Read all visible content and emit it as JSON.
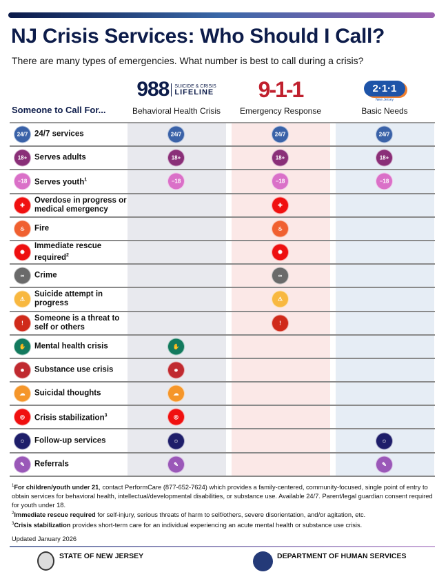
{
  "title": "NJ Crisis Services: Who Should I Call?",
  "subtitle": "There are many types of emergencies. What number is best to call during a crisis?",
  "column_header": "Someone to Call For...",
  "columns": [
    {
      "logo": "988",
      "logo_sub1": "SUICIDE & CRISIS",
      "logo_sub2": "LIFELINE",
      "label": "Behavioral Health Crisis",
      "bg": "#e8e9ee"
    },
    {
      "logo": "9-1-1",
      "label": "Emergency Response",
      "bg": "#fbe8e7"
    },
    {
      "logo": "2·1·1",
      "logo_sub1": "New Jersey",
      "label": "Basic Needs",
      "bg": "#e6edf5"
    }
  ],
  "rows": [
    {
      "label": "24/7 services",
      "sup": "",
      "icon": "clock-24-7-icon",
      "glyph": "24/7",
      "color": "#3a62a8",
      "cols": [
        true,
        true,
        true
      ]
    },
    {
      "label": "Serves adults",
      "sup": "",
      "icon": "adults-18-plus-icon",
      "glyph": "18+",
      "color": "#8a2f78",
      "cols": [
        true,
        true,
        true
      ]
    },
    {
      "label": "Serves youth",
      "sup": "1",
      "icon": "youth-under-18-icon",
      "glyph": "−18",
      "color": "#da70c8",
      "cols": [
        true,
        true,
        true
      ]
    },
    {
      "label": "Overdose in progress or medical emergency",
      "sup": "",
      "icon": "medical-cross-icon",
      "glyph": "✚",
      "color": "#f01010",
      "cols": [
        false,
        true,
        false
      ]
    },
    {
      "label": "Fire",
      "sup": "",
      "icon": "fire-icon",
      "glyph": "♨",
      "color": "#f06030",
      "cols": [
        false,
        true,
        false
      ]
    },
    {
      "label": "Immediate rescue required",
      "sup": "2",
      "icon": "siren-icon",
      "glyph": "✺",
      "color": "#ee1010",
      "cols": [
        false,
        true,
        false
      ]
    },
    {
      "label": "Crime",
      "sup": "",
      "icon": "handcuffs-icon",
      "glyph": "∞",
      "color": "#6a6a6a",
      "cols": [
        false,
        true,
        false
      ]
    },
    {
      "label": "Suicide attempt in progress",
      "sup": "",
      "icon": "person-warning-icon",
      "glyph": "⚠",
      "color": "#f8b840",
      "cols": [
        false,
        true,
        false
      ]
    },
    {
      "label": "Someone is a threat to self or others",
      "sup": "",
      "icon": "warning-triangle-icon",
      "glyph": "!",
      "color": "#d02a1a",
      "cols": [
        false,
        true,
        false
      ]
    },
    {
      "label": "Mental health crisis",
      "sup": "",
      "icon": "helping-hands-icon",
      "glyph": "✋",
      "color": "#137a5e",
      "cols": [
        true,
        false,
        false
      ]
    },
    {
      "label": "Substance use crisis",
      "sup": "",
      "icon": "distressed-person-icon",
      "glyph": "☻",
      "color": "#c02a30",
      "cols": [
        true,
        false,
        false
      ]
    },
    {
      "label": "Suicidal thoughts",
      "sup": "",
      "icon": "thought-bubble-icon",
      "glyph": "☁",
      "color": "#f5962a",
      "cols": [
        true,
        false,
        false
      ]
    },
    {
      "label": "Crisis stabilization",
      "sup": "3",
      "icon": "lifebuoy-icon",
      "glyph": "◎",
      "color": "#f01010",
      "cols": [
        true,
        false,
        false
      ]
    },
    {
      "label": "Follow-up services",
      "sup": "",
      "icon": "follow-up-person-icon",
      "glyph": "☺",
      "color": "#1e1e6a",
      "cols": [
        true,
        false,
        true
      ]
    },
    {
      "label": "Referrals",
      "sup": "",
      "icon": "document-pen-icon",
      "glyph": "✎",
      "color": "#9a58b8",
      "cols": [
        true,
        false,
        true
      ]
    }
  ],
  "footnotes": [
    {
      "num": "1",
      "bold": "For children/youth under 21",
      "text": ", contact PerformCare (877-652-7624) which provides a family-centered, community-focused, single point of entry to obtain services for behavioral health, intellectual/developmental disabilities, or substance use. Available 24/7. Parent/legal guardian consent required for youth under 18."
    },
    {
      "num": "2",
      "bold": "Immediate rescue required",
      "text": " for self-injury, serious threats of harm to self/others, severe disorientation, and/or agitation, etc."
    },
    {
      "num": "3",
      "bold": "Crisis stabilization",
      "text": " provides short-term care for an individual experiencing an acute mental health or substance use crisis."
    }
  ],
  "updated": "Updated January 2026",
  "footer": {
    "left_org": "STATE OF NEW JERSEY",
    "right_org": "DEPARTMENT OF HUMAN SERVICES",
    "dhs_logo_text": "HUMAN SERVICES"
  }
}
